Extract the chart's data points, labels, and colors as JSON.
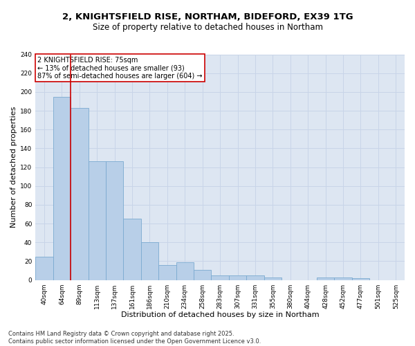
{
  "title": "2, KNIGHTSFIELD RISE, NORTHAM, BIDEFORD, EX39 1TG",
  "subtitle": "Size of property relative to detached houses in Northam",
  "xlabel": "Distribution of detached houses by size in Northam",
  "ylabel": "Number of detached properties",
  "bar_color": "#b8cfe8",
  "bar_edge_color": "#7aaad0",
  "grid_color": "#c8d4e8",
  "background_color": "#dde6f2",
  "categories": [
    "40sqm",
    "64sqm",
    "89sqm",
    "113sqm",
    "137sqm",
    "161sqm",
    "186sqm",
    "210sqm",
    "234sqm",
    "258sqm",
    "283sqm",
    "307sqm",
    "331sqm",
    "355sqm",
    "380sqm",
    "404sqm",
    "428sqm",
    "452sqm",
    "477sqm",
    "501sqm",
    "525sqm"
  ],
  "values": [
    25,
    195,
    183,
    126,
    126,
    65,
    40,
    16,
    19,
    11,
    5,
    5,
    5,
    3,
    0,
    0,
    3,
    3,
    2,
    0,
    0
  ],
  "ylim": [
    0,
    240
  ],
  "yticks": [
    0,
    20,
    40,
    60,
    80,
    100,
    120,
    140,
    160,
    180,
    200,
    220,
    240
  ],
  "vline_x": 1.5,
  "vline_color": "#cc0000",
  "annotation_text": "2 KNIGHTSFIELD RISE: 75sqm\n← 13% of detached houses are smaller (93)\n87% of semi-detached houses are larger (604) →",
  "annotation_box_color": "#ffffff",
  "annotation_box_edge": "#cc0000",
  "footer_text": "Contains HM Land Registry data © Crown copyright and database right 2025.\nContains public sector information licensed under the Open Government Licence v3.0.",
  "title_fontsize": 9.5,
  "subtitle_fontsize": 8.5,
  "xlabel_fontsize": 8,
  "ylabel_fontsize": 8,
  "tick_fontsize": 6.5,
  "annotation_fontsize": 7,
  "footer_fontsize": 6
}
